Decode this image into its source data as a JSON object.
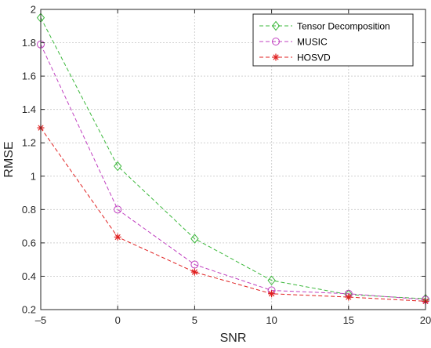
{
  "chart_data": {
    "type": "line",
    "xlabel": "SNR",
    "ylabel": "RMSE",
    "x": [
      -5,
      0,
      5,
      10,
      15,
      20
    ],
    "xlim": [
      -5,
      20
    ],
    "ylim": [
      0.2,
      2
    ],
    "xticks": [
      "-5",
      "0",
      "5",
      "10",
      "15",
      "20"
    ],
    "yticks": [
      "0.2",
      "0.4",
      "0.6",
      "0.8",
      "1",
      "1.2",
      "1.4",
      "1.6",
      "1.8",
      "2"
    ],
    "grid": true,
    "legend_position": "top-right",
    "series": [
      {
        "name": "Tensor Decomposition",
        "values": [
          1.95,
          1.06,
          0.625,
          0.375,
          0.29,
          0.265
        ],
        "color": "#3cb83c",
        "marker": "diamond"
      },
      {
        "name": "MUSIC",
        "values": [
          1.79,
          0.8,
          0.47,
          0.315,
          0.295,
          0.26
        ],
        "color": "#c040c0",
        "marker": "circle"
      },
      {
        "name": "HOSVD",
        "values": [
          1.29,
          0.635,
          0.425,
          0.295,
          0.275,
          0.25
        ],
        "color": "#e02020",
        "marker": "asterisk"
      }
    ]
  }
}
